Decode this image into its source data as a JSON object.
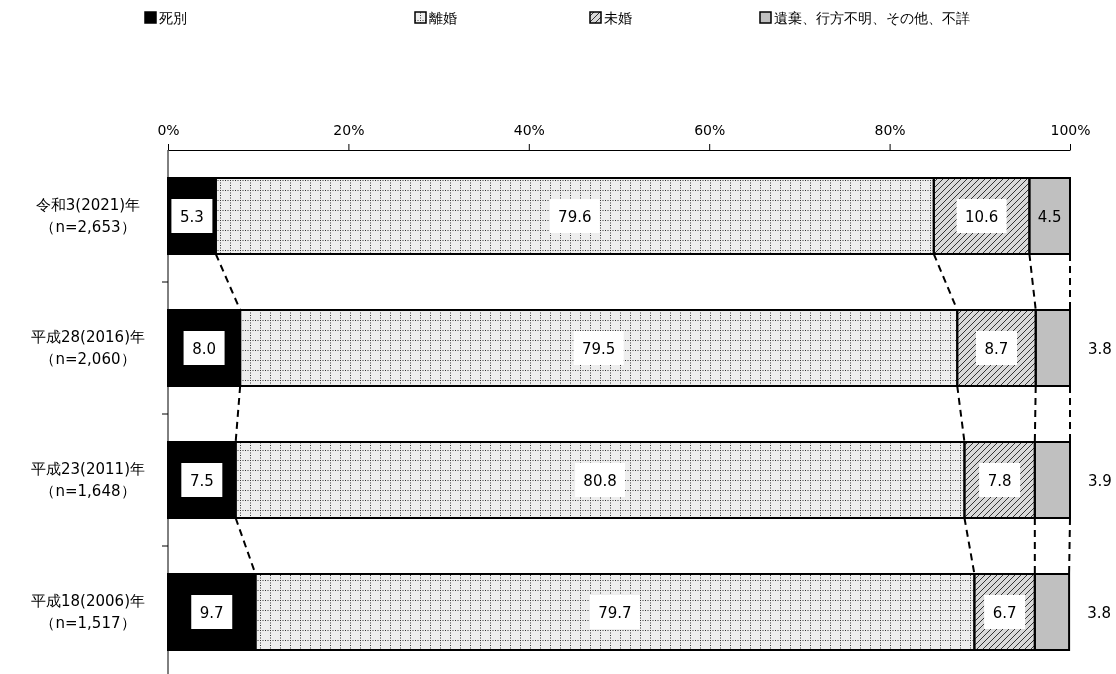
{
  "chart_data": {
    "type": "bar",
    "orientation": "horizontal",
    "stacked": true,
    "categories": [
      "令和3(2021)年（n=2,653）",
      "平成28(2016)年（n=2,060）",
      "平成23(2011)年（n=1,648）",
      "平成18(2006)年（n=1,517）"
    ],
    "series": [
      {
        "name": "死別",
        "color": "#000000",
        "values": [
          5.3,
          8.0,
          7.5,
          9.7
        ],
        "value_labels": [
          "5.3",
          "8.0",
          "7.5",
          "9.7"
        ]
      },
      {
        "name": "離婚",
        "color": "#eeeeee",
        "values": [
          79.6,
          79.5,
          80.8,
          79.7
        ],
        "value_labels": [
          "79.6",
          "79.5",
          "80.8",
          "79.7"
        ]
      },
      {
        "name": "未婚",
        "color": "#d9d9d9",
        "values": [
          10.6,
          8.7,
          7.8,
          6.7
        ],
        "value_labels": [
          "10.6",
          "8.7",
          "7.8",
          "6.7"
        ]
      },
      {
        "name": "遺棄、行方不明、その他、不詳",
        "color": "#c0c0c0",
        "values": [
          4.5,
          3.8,
          3.9,
          3.8
        ],
        "value_labels": [
          "4.5",
          "3.8",
          "3.9",
          "3.8"
        ]
      }
    ],
    "xlim": [
      0,
      100
    ],
    "xticks": [
      {
        "value": 0,
        "label": "0%"
      },
      {
        "value": 20,
        "label": "20%"
      },
      {
        "value": 40,
        "label": "40%"
      },
      {
        "value": 60,
        "label": "60%"
      },
      {
        "value": 80,
        "label": "80%"
      },
      {
        "value": 100,
        "label": "100%"
      }
    ],
    "legend": "top",
    "grid": false
  }
}
